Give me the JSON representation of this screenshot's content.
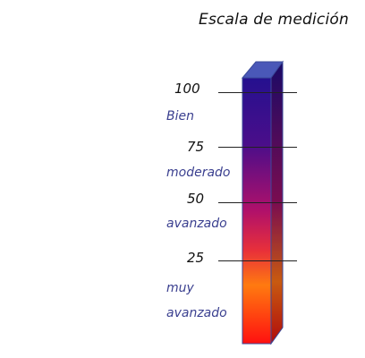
{
  "title": "Escala de medición",
  "scale": {
    "ticks": [
      {
        "value": "100"
      },
      {
        "value": "75"
      },
      {
        "value": "50"
      },
      {
        "value": "25"
      }
    ],
    "levels": [
      {
        "label": "Bien"
      },
      {
        "label": "moderado"
      },
      {
        "label": "avanzado"
      },
      {
        "label": "muy avanzado"
      }
    ]
  },
  "colors": {
    "label_text": "#3a3f8f",
    "gradient_top": "#25108f",
    "gradient_mid": "#a0106a",
    "gradient_orange": "#ff7a10",
    "gradient_bottom": "#ff1010"
  }
}
